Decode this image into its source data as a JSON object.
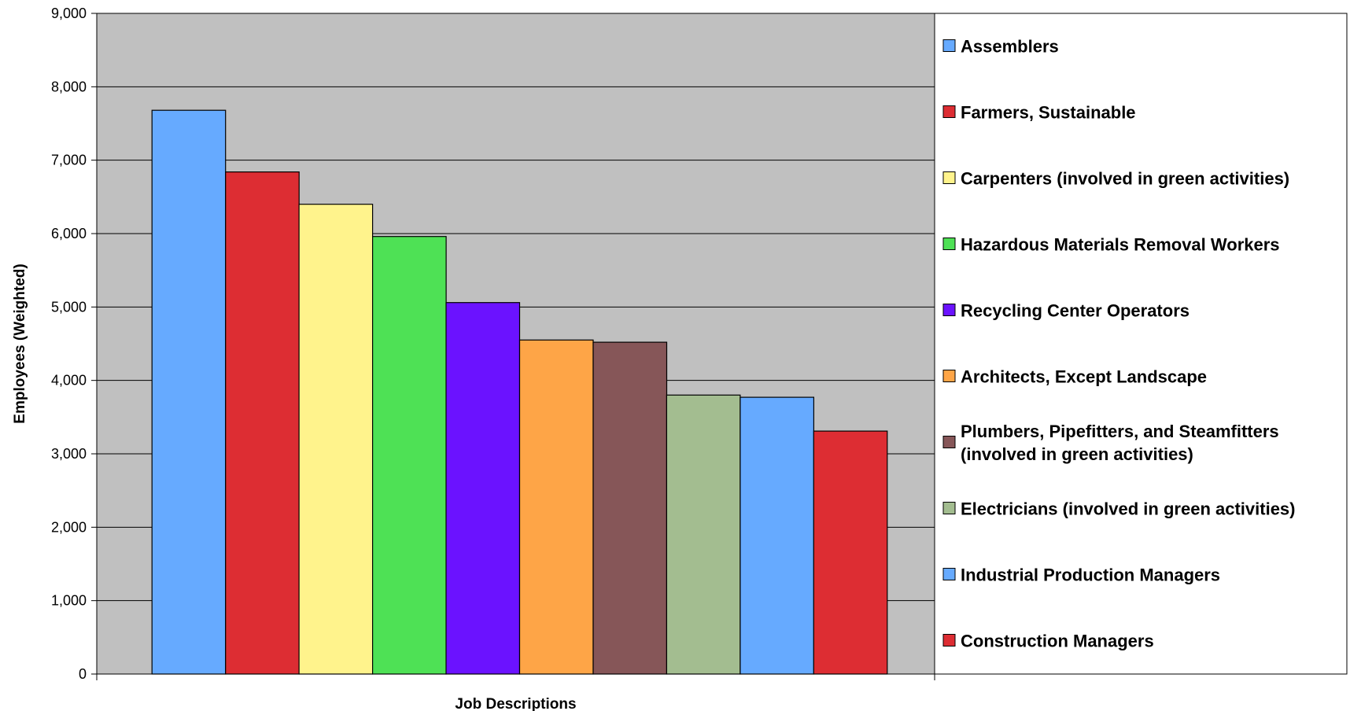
{
  "chart_data": {
    "type": "bar",
    "title": "",
    "xlabel": "Job Descriptions",
    "ylabel": "Employees (Weighted)",
    "ylim": [
      0,
      9000
    ],
    "yticks": [
      "0",
      "1,000",
      "2,000",
      "3,000",
      "4,000",
      "5,000",
      "6,000",
      "7,000",
      "8,000",
      "9,000"
    ],
    "grid": true,
    "legend_position": "right",
    "plot_background": "#c0c0c0",
    "series": [
      {
        "name": "Assemblers",
        "value": 7680,
        "color": "#66aaff"
      },
      {
        "name": "Farmers, Sustainable",
        "value": 6840,
        "color": "#dd2d33"
      },
      {
        "name": "Carpenters (involved in green activities)",
        "value": 6400,
        "color": "#fff38c"
      },
      {
        "name": "Hazardous Materials Removal Workers",
        "value": 5960,
        "color": "#4ee155"
      },
      {
        "name": "Recycling Center Operators",
        "value": 5060,
        "color": "#6b12ff"
      },
      {
        "name": "Architects, Except Landscape",
        "value": 4550,
        "color": "#fea547"
      },
      {
        "name": "Plumbers, Pipefitters, and Steamfitters (involved in green activities)",
        "name_lines": [
          "Plumbers, Pipefitters, and Steamfitters",
          "(involved in green activities)"
        ],
        "value": 4520,
        "color": "#865658"
      },
      {
        "name": "Electricians (involved in green activities)",
        "value": 3800,
        "color": "#a3bd90"
      },
      {
        "name": "Industrial Production Managers",
        "value": 3770,
        "color": "#66aaff"
      },
      {
        "name": "Construction Managers",
        "value": 3310,
        "color": "#dd2d33"
      }
    ]
  }
}
